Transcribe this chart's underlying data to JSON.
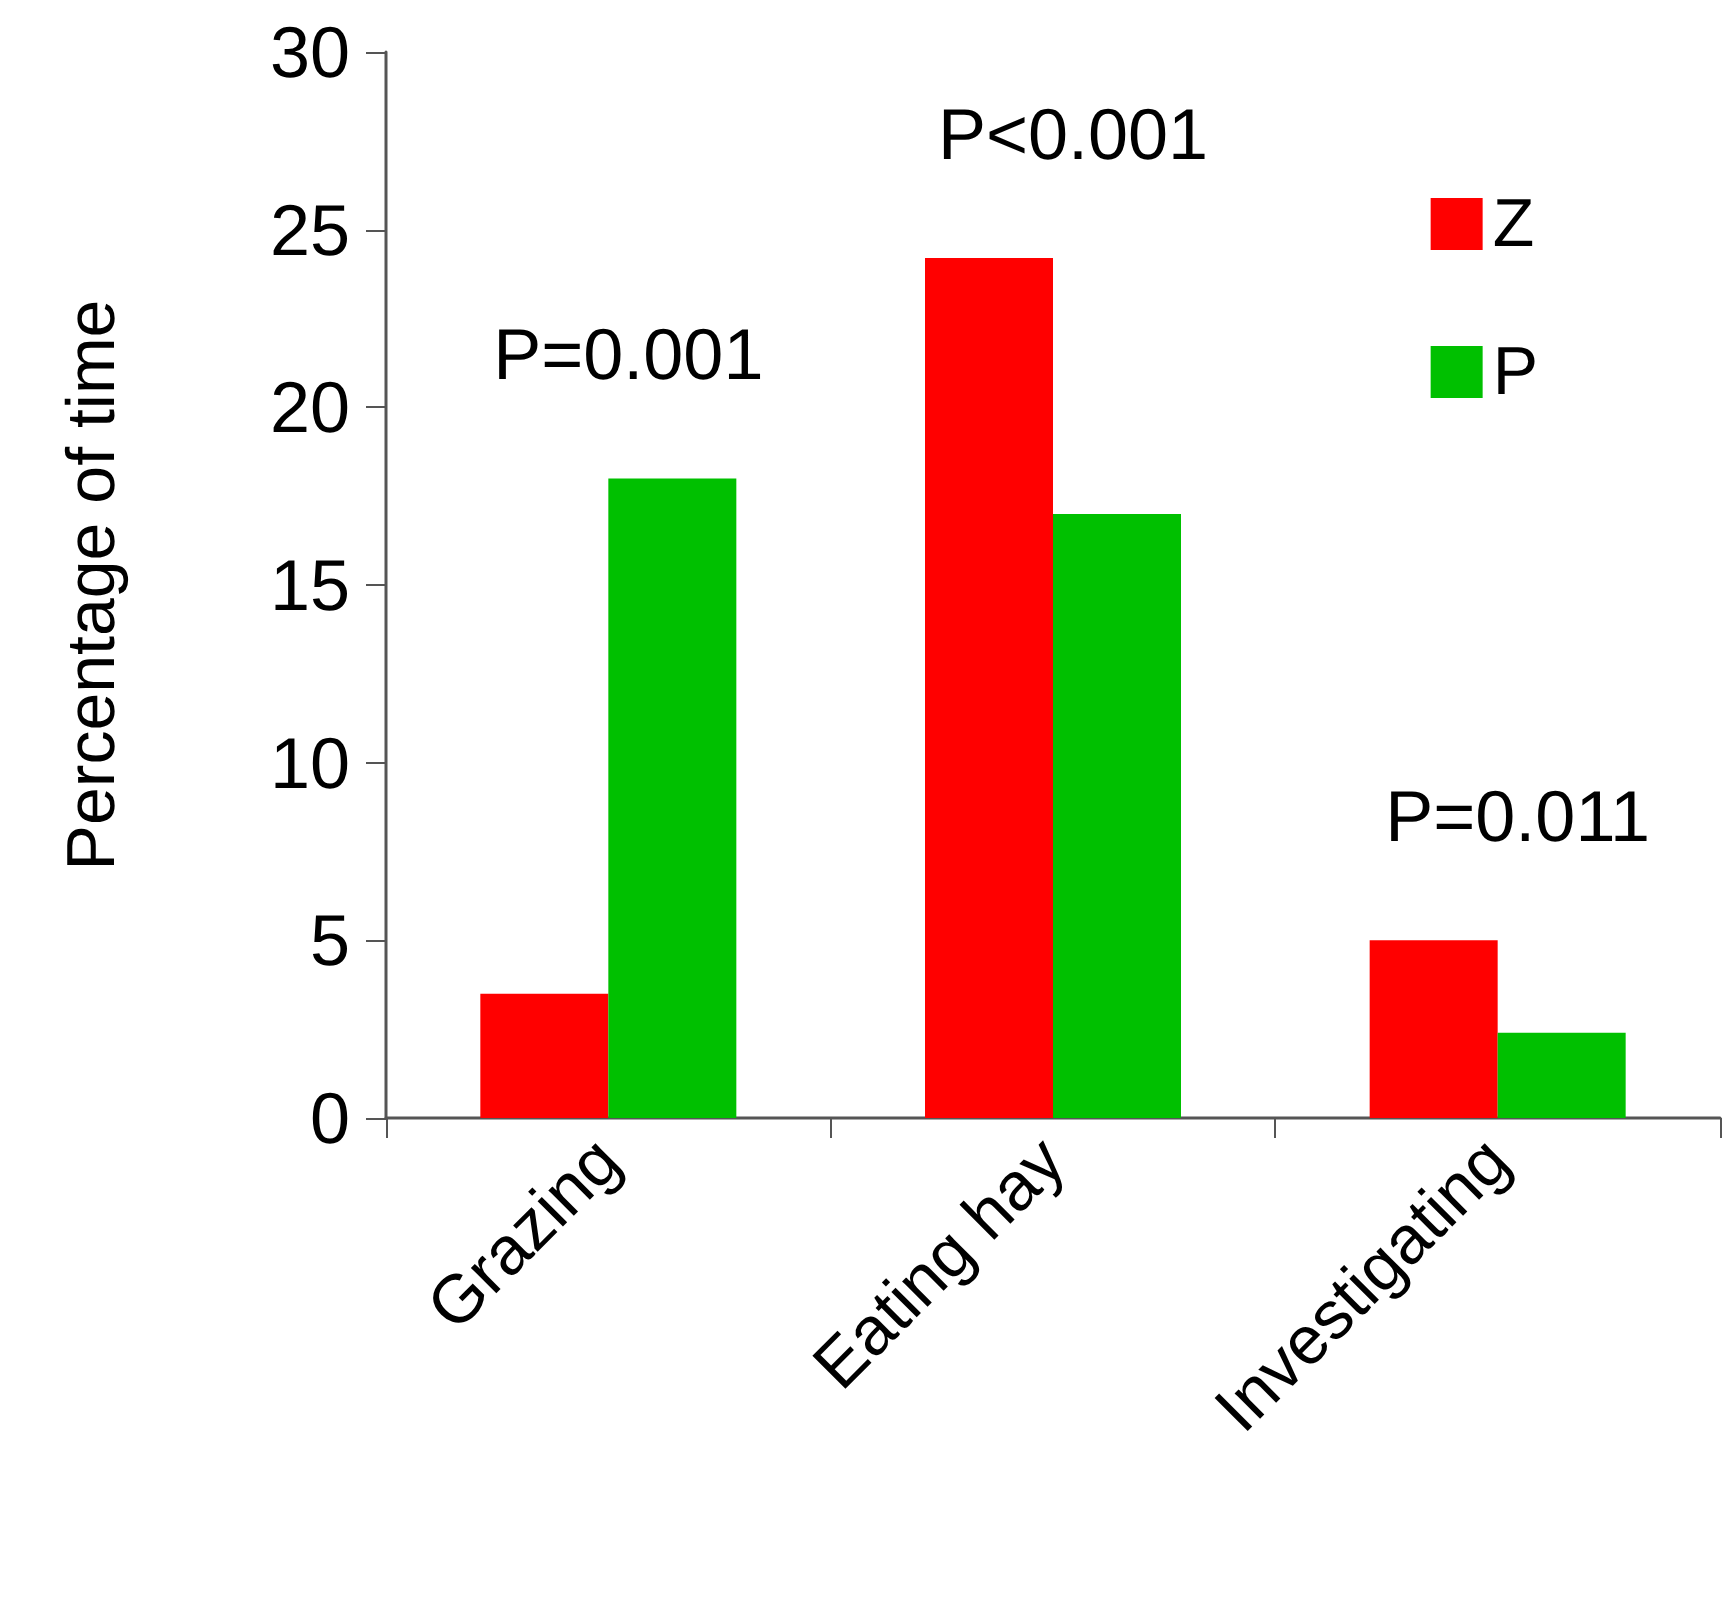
{
  "chart_data": {
    "type": "bar",
    "ylabel": "Percentage of time",
    "categories": [
      "Grazing",
      "Eating hay",
      "Investigating"
    ],
    "series": [
      {
        "name": "Z",
        "color": "#ff0000",
        "values": [
          3.5,
          24.2,
          5.0
        ]
      },
      {
        "name": "P",
        "color": "#00c000",
        "values": [
          18.0,
          17.0,
          2.4
        ]
      }
    ],
    "ylim": [
      0,
      30
    ],
    "yticks": [
      0,
      5,
      10,
      15,
      20,
      25,
      30
    ],
    "grid": false,
    "legend": "top right",
    "annotations": [
      "P=0.001",
      "P<0.001",
      "P=0.011"
    ]
  }
}
